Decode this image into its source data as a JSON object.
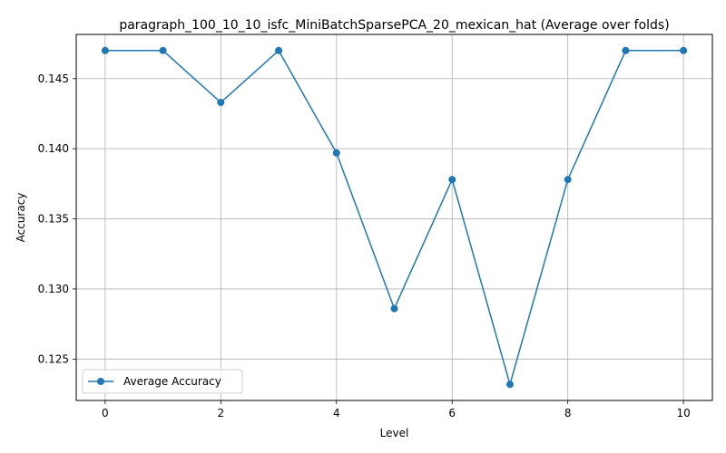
{
  "chart_data": {
    "type": "line",
    "title": "paragraph_100_10_10_isfc_MiniBatchSparsePCA_20_mexican_hat (Average over folds)",
    "xlabel": "Level",
    "ylabel": "Accuracy",
    "xlim": [
      -0.5,
      10.5
    ],
    "ylim": [
      0.12205,
      0.14815
    ],
    "xticks": [
      0,
      2,
      4,
      6,
      8,
      10
    ],
    "xtick_labels": [
      "0",
      "2",
      "4",
      "6",
      "8",
      "10"
    ],
    "yticks": [
      0.125,
      0.13,
      0.135,
      0.14,
      0.145
    ],
    "ytick_labels": [
      "0.125",
      "0.130",
      "0.135",
      "0.140",
      "0.145"
    ],
    "grid": true,
    "legend_position": "lower-left",
    "series": [
      {
        "name": "Average Accuracy",
        "color": "#1f77b4",
        "marker": "circle",
        "x": [
          0,
          1,
          2,
          3,
          4,
          5,
          6,
          7,
          8,
          9,
          10
        ],
        "y": [
          0.147,
          0.147,
          0.1433,
          0.147,
          0.1397,
          0.1286,
          0.1378,
          0.1232,
          0.1378,
          0.147,
          0.147
        ]
      }
    ]
  }
}
